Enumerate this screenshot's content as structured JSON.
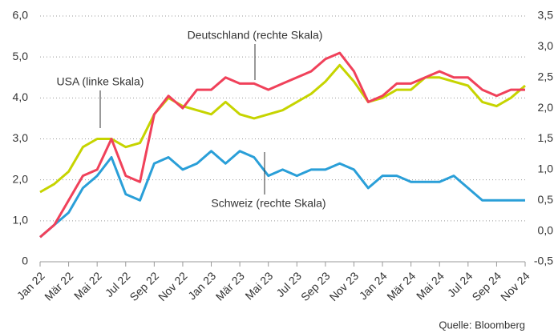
{
  "chart_data": {
    "type": "line",
    "categories": [
      "Jan 22",
      null,
      "Mär 22",
      null,
      "Mai 22",
      null,
      "Jul 22",
      null,
      "Sep 22",
      null,
      "Nov 22",
      null,
      "Jan 23",
      null,
      "Mär 23",
      null,
      "Mai 23",
      null,
      "Jul 23",
      null,
      "Sep 23",
      null,
      "Nov 23",
      null,
      "Jan 24",
      null,
      "Mär 24",
      null,
      "Mai 24",
      null,
      "Jul 24",
      null,
      "Sep 24",
      null,
      "Nov 24"
    ],
    "series": [
      {
        "name": "USA",
        "color": "#c6d400",
        "values": [
          1.7,
          1.9,
          2.2,
          2.8,
          3.0,
          3.0,
          2.8,
          2.9,
          3.6,
          4.0,
          3.8,
          3.7,
          3.6,
          3.9,
          3.6,
          3.5,
          3.6,
          3.7,
          3.9,
          4.1,
          4.4,
          4.8,
          4.4,
          3.9,
          4.0,
          4.2,
          4.2,
          4.5,
          4.5,
          4.4,
          4.3,
          3.9,
          3.8,
          4.0,
          4.3
        ]
      },
      {
        "name": "Deutschland",
        "color": "#f0415a",
        "axis": "y2",
        "values": [
          -0.1,
          0.1,
          0.5,
          0.9,
          1.0,
          1.5,
          0.9,
          0.8,
          1.9,
          2.2,
          2.0,
          2.3,
          2.3,
          2.5,
          2.4,
          2.4,
          2.3,
          2.4,
          2.5,
          2.6,
          2.8,
          2.9,
          2.6,
          2.1,
          2.2,
          2.4,
          2.4,
          2.5,
          2.6,
          2.5,
          2.5,
          2.3,
          2.2,
          2.3,
          2.3
        ]
      },
      {
        "name": "Schweiz",
        "color": "#2a9fd8",
        "axis": "y2",
        "values": [
          -0.1,
          0.1,
          0.3,
          0.7,
          0.9,
          1.2,
          0.6,
          0.5,
          1.1,
          1.2,
          1.0,
          1.1,
          1.3,
          1.1,
          1.3,
          1.2,
          0.9,
          1.0,
          0.9,
          1.0,
          1.0,
          1.1,
          1.0,
          0.7,
          0.9,
          0.9,
          0.8,
          0.8,
          0.8,
          0.9,
          0.7,
          0.5,
          0.5,
          0.5,
          0.5
        ]
      }
    ],
    "ylim": [
      0,
      6
    ],
    "yticks": [
      0,
      {
        "value": 1,
        "label": "1,0"
      },
      {
        "value": 2,
        "label": "2,0"
      },
      {
        "value": 3,
        "label": "3,0"
      },
      {
        "value": 4,
        "label": "4,0"
      },
      {
        "value": 5,
        "label": "5,0"
      },
      {
        "value": 6,
        "label": "6,0"
      }
    ],
    "y2lim": [
      -0.5,
      3.5
    ],
    "y2ticks": [
      {
        "value": -0.5,
        "label": "-0,5"
      },
      {
        "value": 0,
        "label": "0,0"
      },
      {
        "value": 0.5,
        "label": "0,5"
      },
      {
        "value": 1,
        "label": "1,0"
      },
      {
        "value": 1.5,
        "label": "1,5"
      },
      {
        "value": 2,
        "label": "2,0"
      },
      {
        "value": 2.5,
        "label": "2,5"
      },
      {
        "value": 3,
        "label": "3,0"
      },
      {
        "value": 3.5,
        "label": "3,5"
      }
    ],
    "grid": true,
    "annotations": [
      "Deutschland (rechte Skala)",
      "USA (linke Skala)",
      "Schweiz (rechte Skala)"
    ],
    "source": "Quelle: Bloomberg"
  }
}
